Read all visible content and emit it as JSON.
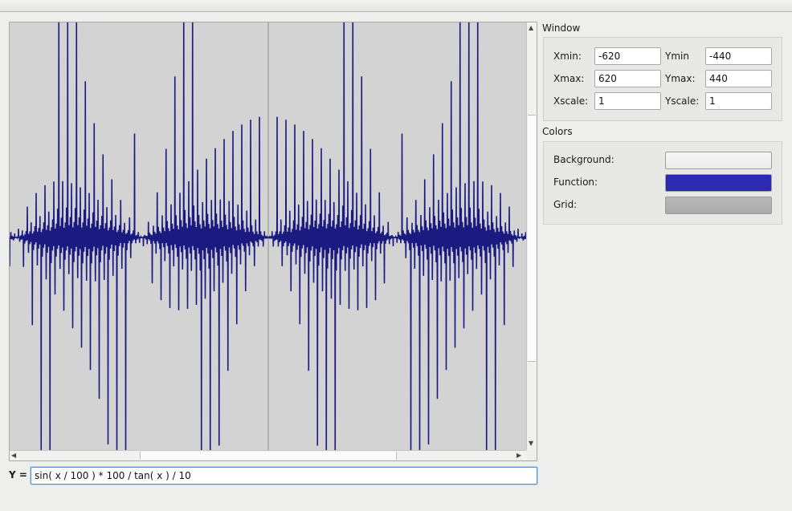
{
  "colors": {
    "plot_background": "#d3d3d3",
    "function_line": "#1a1a80",
    "axis_line": "#8f8f8f",
    "background_swatch": "#ececec",
    "function_swatch": "#2b2ab0",
    "grid_swatch": "#aaaaaa"
  },
  "window_panel": {
    "title": "Window",
    "xmin_label": "Xmin:",
    "xmin_value": "-620",
    "ymin_label": "Ymin",
    "ymin_value": "-440",
    "xmax_label": "Xmax:",
    "xmax_value": "620",
    "ymax_label": "Ymax:",
    "ymax_value": "440",
    "xscale_label": "Xscale:",
    "xscale_value": "1",
    "yscale_label": "Yscale:",
    "yscale_value": "1"
  },
  "colors_panel": {
    "title": "Colors",
    "background_label": "Background:",
    "function_label": "Function:",
    "grid_label": "Grid:"
  },
  "function_input": {
    "label": "Y =",
    "value": "sin( x / 100 ) * 100 / tan( x ) / 10"
  },
  "chart_data": {
    "type": "line",
    "expression": "sin( x / 100 ) * 100 / tan( x ) / 10",
    "xlim": [
      -620,
      620
    ],
    "ylim": [
      -440,
      440
    ],
    "grid": false
  }
}
